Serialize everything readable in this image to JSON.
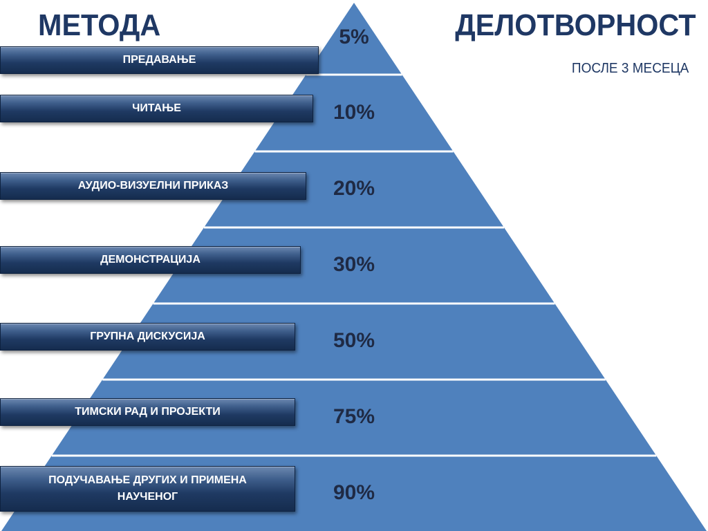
{
  "header": {
    "left_title": "МЕТОДА",
    "right_title": "ДЕЛОТВОРНОСТ",
    "right_subtitle": "ПОСЛЕ 3 МЕСЕЦА"
  },
  "pyramid": {
    "fill_color": "#4f81bd",
    "divider_color": "#ffffff",
    "levels": [
      {
        "method": "ПРЕДАВАЊЕ",
        "effectiveness": "5%"
      },
      {
        "method": "ЧИТАЊЕ",
        "effectiveness": "10%"
      },
      {
        "method": "АУДИО-ВИЗУЕЛНИ ПРИКАЗ",
        "effectiveness": "20%"
      },
      {
        "method": "ДЕМОНСТРАЦИЈА",
        "effectiveness": "30%"
      },
      {
        "method": "ГРУПНА ДИСКУСИЈА",
        "effectiveness": "50%"
      },
      {
        "method": "ТИМСКИ РАД И ПРОЈЕКТИ",
        "effectiveness": "75%"
      },
      {
        "method": "ПОДУЧАВАЊЕ ДРУГИХ И ПРИМЕНА НАУЧЕНОГ",
        "effectiveness": "90%"
      }
    ]
  }
}
